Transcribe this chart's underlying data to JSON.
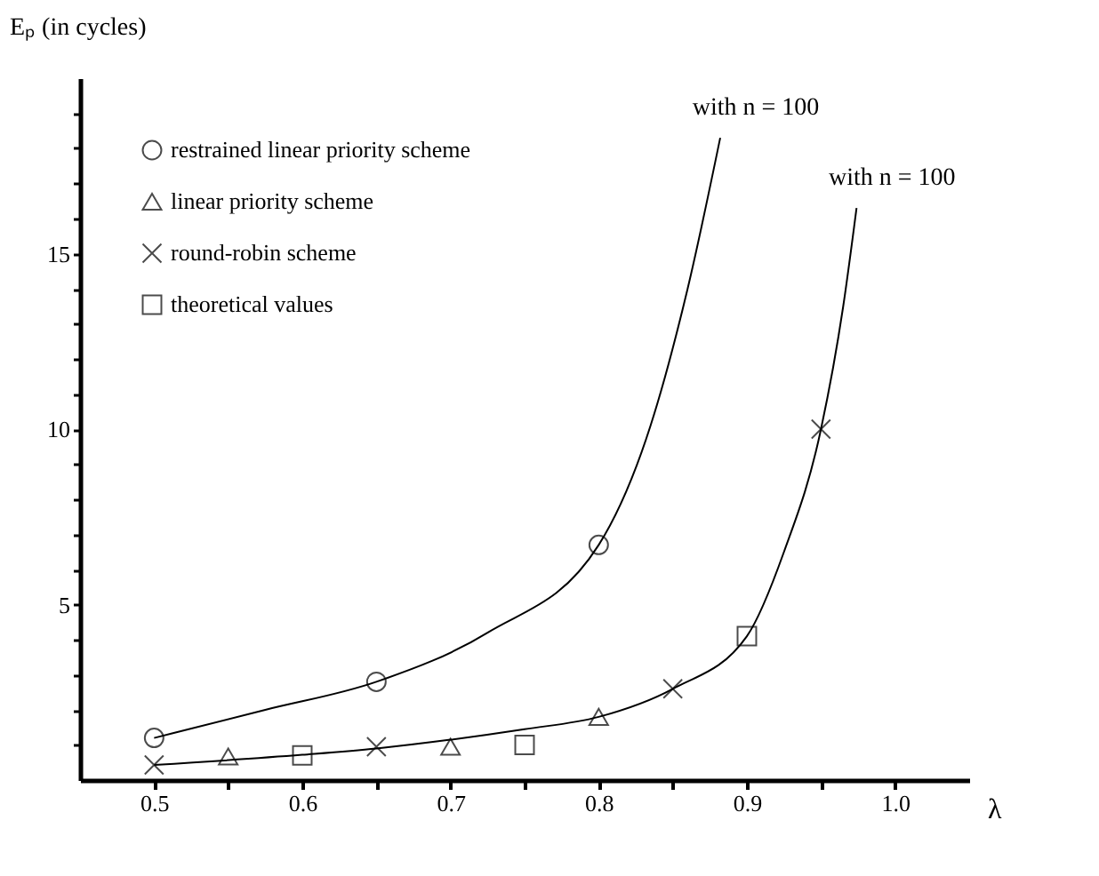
{
  "chart_data": {
    "type": "scatter",
    "xlabel": "λ",
    "ylabel": "Eₚ (in cycles)",
    "xlim": [
      0.45,
      1.05
    ],
    "ylim": [
      0,
      20
    ],
    "xticks": [
      0.5,
      {
        "value": 0.55,
        "label": null
      },
      0.6,
      {
        "value": 0.65,
        "label": null
      },
      0.7,
      {
        "value": 0.75,
        "label": null
      },
      0.8,
      {
        "value": 0.85,
        "label": null
      },
      0.9,
      {
        "value": 0.95,
        "label": null
      },
      {
        "value": 1.0,
        "label": "1.0"
      }
    ],
    "yticks": [
      {
        "value": 1,
        "label": null
      },
      {
        "value": 2,
        "label": null
      },
      {
        "value": 3,
        "label": null
      },
      {
        "value": 4,
        "label": null
      },
      5,
      {
        "value": 6,
        "label": null
      },
      {
        "value": 7,
        "label": null
      },
      {
        "value": 8,
        "label": null
      },
      {
        "value": 9,
        "label": null
      },
      10,
      {
        "value": 11,
        "label": null
      },
      {
        "value": 12,
        "label": null
      },
      {
        "value": 13,
        "label": null
      },
      {
        "value": 14,
        "label": null
      },
      15,
      {
        "value": 16,
        "label": null
      },
      {
        "value": 17,
        "label": null
      },
      {
        "value": 18,
        "label": null
      },
      {
        "value": 19,
        "label": null
      }
    ],
    "grid": false,
    "legend": "top left",
    "series": [
      {
        "type": "line",
        "marker": "none",
        "color": "#000000",
        "x": [
          0.5,
          0.575,
          0.65,
          0.725,
          0.8,
          0.835,
          0.86,
          0.882
        ],
        "values": [
          1.2,
          2.0,
          2.8,
          4.2,
          6.7,
          10.1,
          14,
          18.3
        ]
      },
      {
        "type": "line",
        "marker": "none",
        "color": "#000000",
        "x": [
          0.5,
          0.6,
          0.65,
          0.7,
          0.75,
          0.8,
          0.85,
          0.9,
          0.925,
          0.95,
          0.965,
          0.974
        ],
        "values": [
          0.43,
          0.72,
          0.9,
          1.15,
          1.45,
          1.8,
          2.6,
          4.1,
          6.5,
          10,
          13.5,
          16.3
        ]
      },
      {
        "name": "restrained linear priority scheme",
        "marker": "circle",
        "color": "#000000",
        "x": [
          0.5,
          0.65,
          0.8
        ],
        "values": [
          1.2,
          2.8,
          6.7
        ]
      },
      {
        "name": "linear priority scheme",
        "marker": "triangle",
        "color": "#000000",
        "x": [
          0.55,
          0.7,
          0.8
        ],
        "values": [
          0.67,
          0.95,
          1.8
        ]
      },
      {
        "name": "round-robin scheme",
        "marker": "cross",
        "color": "#000000",
        "x": [
          0.5,
          0.65,
          0.85,
          0.95
        ],
        "values": [
          0.43,
          0.95,
          2.6,
          10
        ]
      },
      {
        "name": "theoretical values",
        "marker": "square",
        "color": "#000000",
        "x": [
          0.6,
          0.75,
          0.9
        ],
        "values": [
          0.7,
          1.0,
          4.1
        ]
      }
    ],
    "annotations": [
      {
        "text": "with n = 100",
        "x": 0.882,
        "y": 18.3
      },
      {
        "text": "with n = 100",
        "x": 0.974,
        "y": 16.3
      }
    ]
  }
}
